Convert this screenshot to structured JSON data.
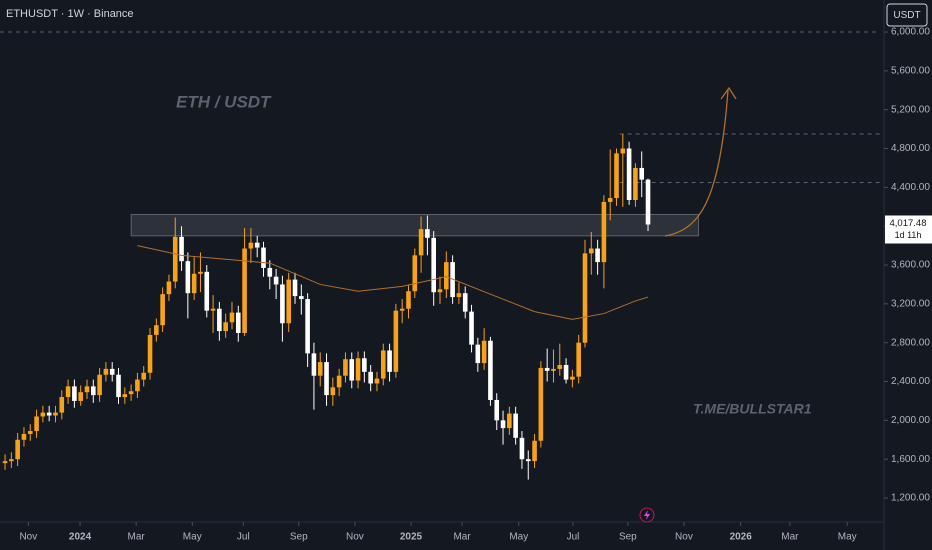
{
  "chart_data": {
    "type": "candlestick",
    "title": "ETHUSDT · 1W · Binance",
    "currency": "USDT",
    "watermark": "ETH / USDT",
    "signature": "T.ME/BULLSTAR1",
    "countdown": "1d 11h",
    "last_label": "4,017.48",
    "colors": {
      "up": "#f7a21b",
      "down": "#ffffff",
      "ma": "#b5702a"
    },
    "xlim": [
      -0.8,
      138.8
    ],
    "ylim": [
      953,
      6330
    ],
    "xticks": [
      {
        "value": 3.7,
        "label": "Nov"
      },
      {
        "value": 11.9,
        "label": "2024"
      },
      {
        "value": 20.8,
        "label": "Mar"
      },
      {
        "value": 29.7,
        "label": "May"
      },
      {
        "value": 37.8,
        "label": "Jul"
      },
      {
        "value": 46.6,
        "label": "Sep"
      },
      {
        "value": 55.5,
        "label": "Nov"
      },
      {
        "value": 64.4,
        "label": "2025"
      },
      {
        "value": 72.5,
        "label": "Mar"
      },
      {
        "value": 81.5,
        "label": "May"
      },
      {
        "value": 90.1,
        "label": "Jul"
      },
      {
        "value": 98.8,
        "label": "Sep"
      },
      {
        "value": 107.7,
        "label": "Nov"
      },
      {
        "value": 116.7,
        "label": "2026"
      },
      {
        "value": 124.5,
        "label": "Mar"
      },
      {
        "value": 133.6,
        "label": "May"
      }
    ],
    "yticks": [
      {
        "value": 1200,
        "label": "1,200.00"
      },
      {
        "value": 1600,
        "label": "1,600.00"
      },
      {
        "value": 2000,
        "label": "2,000.00"
      },
      {
        "value": 2400,
        "label": "2,400.00"
      },
      {
        "value": 2800,
        "label": "2,800.00"
      },
      {
        "value": 3200,
        "label": "3,200.00"
      },
      {
        "value": 3600,
        "label": "3,600.00"
      },
      {
        "value": 4000,
        "label": "4,000.00"
      },
      {
        "value": 4400,
        "label": "4,400.00"
      },
      {
        "value": 4800,
        "label": "4,800.00"
      },
      {
        "value": 5200,
        "label": "5,200.00"
      },
      {
        "value": 5600,
        "label": "5,600.00"
      },
      {
        "value": 6000,
        "label": "6,000.00"
      }
    ],
    "zone": [
      3900,
      4120
    ],
    "levels": [
      6000,
      4950,
      4450
    ],
    "open": [
      1560,
      1580,
      1600,
      1800,
      1860,
      1890,
      2040,
      2080,
      2050,
      2080,
      2240,
      2350,
      2200,
      2290,
      2350,
      2260,
      2470,
      2530,
      2470,
      2240,
      2270,
      2300,
      2420,
      2490,
      2880,
      2980,
      3300,
      3430,
      3890,
      3640,
      3310,
      3510,
      3530,
      3130,
      3150,
      2920,
      3010,
      3110,
      2900,
      3770,
      3830,
      3780,
      3570,
      3480,
      3400,
      3000,
      3450,
      3280,
      3250,
      2690,
      2460,
      2600,
      2260,
      2340,
      2460,
      2630,
      2410,
      2640,
      2500,
      2380,
      2430,
      2720,
      2500,
      3130,
      3150,
      3330,
      3700,
      3970,
      3880,
      3320,
      3350,
      3630,
      3270,
      3310,
      3120,
      2780,
      2590,
      2820,
      2210,
      2000,
      1920,
      2070,
      1820,
      1600,
      1580,
      1790,
      2540,
      2510,
      2530,
      2570,
      2420,
      2450,
      2800,
      3720,
      3770,
      3630,
      4250,
      4290,
      4750,
      4800,
      4270,
      4600,
      4480
    ],
    "high": [
      1650,
      1670,
      1870,
      1930,
      1960,
      2110,
      2150,
      2150,
      2150,
      2310,
      2420,
      2420,
      2360,
      2420,
      2420,
      2540,
      2600,
      2600,
      2540,
      2340,
      2370,
      2490,
      2560,
      2950,
      3050,
      3370,
      3500,
      4090,
      4000,
      3730,
      3680,
      3730,
      3600,
      3290,
      3220,
      3100,
      3220,
      3180,
      3980,
      3980,
      3900,
      3840,
      3650,
      3560,
      3490,
      3520,
      3520,
      3400,
      3310,
      2800,
      2700,
      2690,
      2440,
      2530,
      2700,
      2700,
      2710,
      2710,
      2570,
      2500,
      2790,
      2790,
      3200,
      3250,
      3400,
      3770,
      4100,
      4110,
      3950,
      3480,
      3740,
      3700,
      3420,
      3380,
      3190,
      2850,
      2950,
      2860,
      2280,
      2100,
      2140,
      2140,
      1890,
      1690,
      1860,
      2610,
      2740,
      2730,
      2790,
      2640,
      2520,
      2880,
      3860,
      3940,
      3860,
      4320,
      4790,
      4800,
      4950,
      4870,
      4650,
      4770,
      4490
    ],
    "low": [
      1490,
      1510,
      1530,
      1730,
      1790,
      1820,
      1980,
      1990,
      1980,
      2010,
      2170,
      2130,
      2150,
      2220,
      2180,
      2190,
      2400,
      2400,
      2170,
      2170,
      2200,
      2230,
      2350,
      2420,
      2810,
      2910,
      3230,
      3360,
      3540,
      3050,
      3240,
      3320,
      3060,
      2900,
      2820,
      2850,
      2940,
      2810,
      2870,
      3620,
      3680,
      3480,
      3350,
      3250,
      2810,
      2910,
      3200,
      3090,
      2550,
      2110,
      2350,
      2150,
      2150,
      2250,
      2390,
      2330,
      2330,
      2390,
      2300,
      2300,
      2360,
      2400,
      2440,
      3000,
      3050,
      3260,
      3520,
      3700,
      3180,
      3200,
      3260,
      3200,
      3200,
      3050,
      2700,
      2500,
      2520,
      2150,
      1900,
      1750,
      1850,
      1750,
      1500,
      1390,
      1510,
      1720,
      2400,
      2390,
      2460,
      2380,
      2340,
      2380,
      2750,
      3500,
      3500,
      3360,
      4060,
      4210,
      4200,
      4220,
      4200,
      4300,
      3950
    ],
    "close": [
      1580,
      1600,
      1800,
      1860,
      1890,
      2040,
      2080,
      2050,
      2080,
      2240,
      2350,
      2200,
      2290,
      2350,
      2260,
      2470,
      2530,
      2470,
      2240,
      2270,
      2300,
      2420,
      2490,
      2880,
      2980,
      3300,
      3430,
      3890,
      3640,
      3310,
      3510,
      3530,
      3130,
      3150,
      2920,
      3010,
      3110,
      2900,
      3770,
      3830,
      3780,
      3570,
      3480,
      3400,
      3000,
      3450,
      3280,
      3250,
      2690,
      2460,
      2600,
      2260,
      2340,
      2460,
      2630,
      2410,
      2640,
      2500,
      2380,
      2430,
      2720,
      2500,
      3130,
      3150,
      3330,
      3700,
      3970,
      3880,
      3320,
      3350,
      3630,
      3270,
      3310,
      3120,
      2780,
      2590,
      2820,
      2210,
      2000,
      1920,
      2070,
      1820,
      1600,
      1580,
      1790,
      2540,
      2510,
      2530,
      2570,
      2420,
      2450,
      2800,
      3720,
      3770,
      3630,
      4250,
      4290,
      4750,
      4800,
      4270,
      4600,
      4480,
      4017.48
    ],
    "ma": {
      "x": [
        21,
        28,
        35,
        42,
        50,
        56,
        63,
        70,
        77,
        84,
        90,
        95,
        100,
        102
      ],
      "values": [
        3800,
        3700,
        3660,
        3620,
        3400,
        3330,
        3380,
        3480,
        3300,
        3120,
        3040,
        3100,
        3230,
        3270
      ]
    }
  }
}
